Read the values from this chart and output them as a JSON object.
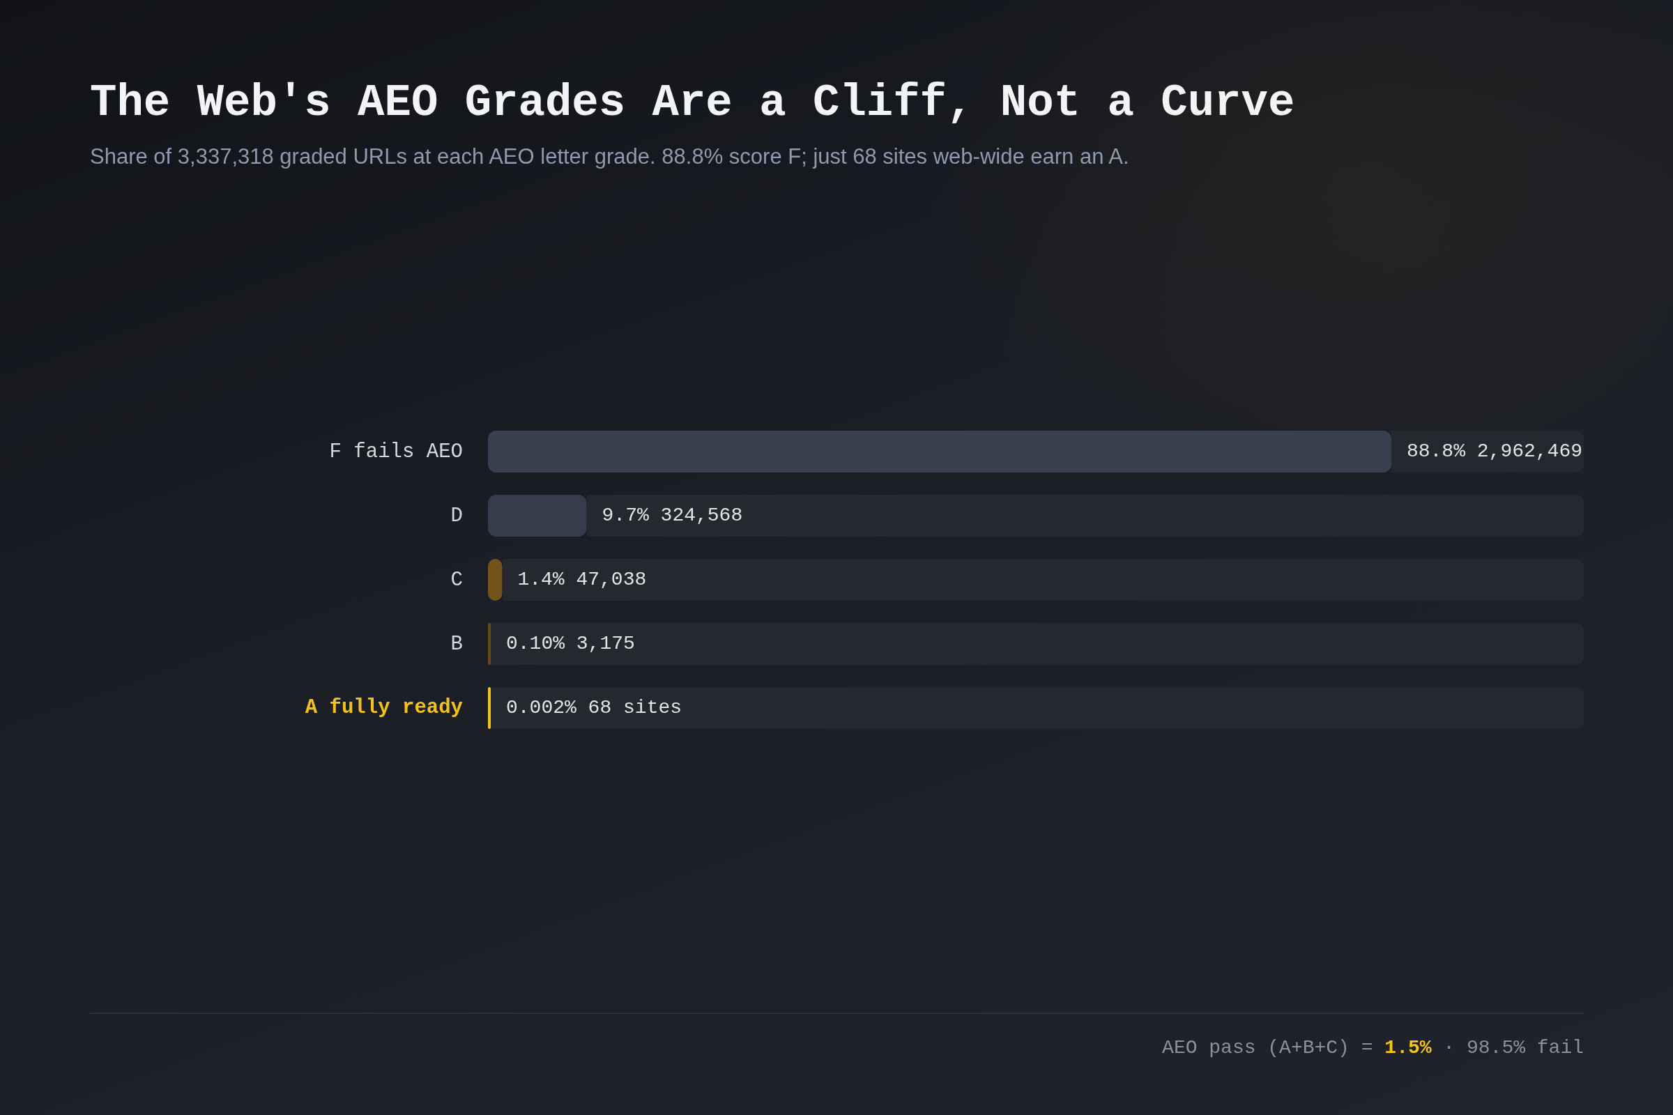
{
  "chart_data": {
    "type": "bar",
    "orientation": "horizontal",
    "title": "The Web's AEO Grades Are a Cliff, Not a Curve",
    "subtitle": "Share of 3,337,318 graded URLs at each AEO letter grade. 88.8% score F; just 68 sites web-wide earn an A.",
    "categories": [
      "F fails AEO",
      "D",
      "C",
      "B",
      "A fully ready"
    ],
    "values": [
      88.8,
      9.7,
      1.4,
      0.1,
      0.002
    ],
    "value_labels": [
      "88.8% 2,962,469",
      "9.7% 324,568",
      "1.4% 47,038",
      "0.10% 3,175",
      "0.002% 68 sites"
    ],
    "colors": [
      "#394050",
      "#353c4b",
      "#74531a",
      "#6a4a1c",
      "#f2c21b"
    ],
    "annotations": [
      "AEO pass (A+B+C) = 1.5% · 98.5% fail"
    ],
    "grid": false,
    "legend": false
  }
}
